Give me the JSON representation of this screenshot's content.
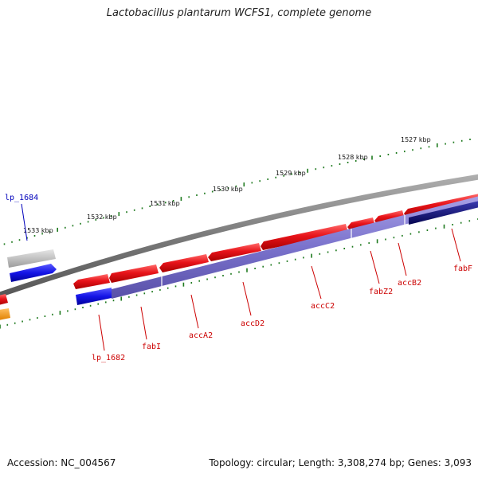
{
  "title": "Lactobacillus plantarum WCFS1, complete genome",
  "footer": {
    "accession": "Accession: NC_004567",
    "summary": "Topology: circular; Length: 3,308,274 bp; Genes: 3,093"
  },
  "colors": {
    "forward_gene": "#e8141a",
    "reverse_gene": "#1414e6",
    "reverse_operon": "#7a72cc",
    "reverse_dark": "#0c0c78",
    "backbone": "#808080",
    "pseudo_gene": "#bdbdbd",
    "orange_gene": "#f29500",
    "ticks": "#1f7a1f",
    "label_red": "#cc0000",
    "label_blue": "#0000bb"
  },
  "kbp_labels": [
    "1533 kbp",
    "1532 kbp",
    "1531 kbp",
    "1530 kbp",
    "1529 kbp",
    "1528 kbp",
    "1527 kbp"
  ],
  "gene_labels": [
    {
      "name": "lp_1684",
      "color": "label_blue"
    },
    {
      "name": "lp_1682",
      "color": "label_red"
    },
    {
      "name": "fabI",
      "color": "label_red"
    },
    {
      "name": "accA2",
      "color": "label_red"
    },
    {
      "name": "accD2",
      "color": "label_red"
    },
    {
      "name": "accC2",
      "color": "label_red"
    },
    {
      "name": "fabZ2",
      "color": "label_red"
    },
    {
      "name": "accB2",
      "color": "label_red"
    },
    {
      "name": "fabF",
      "color": "label_red"
    }
  ]
}
